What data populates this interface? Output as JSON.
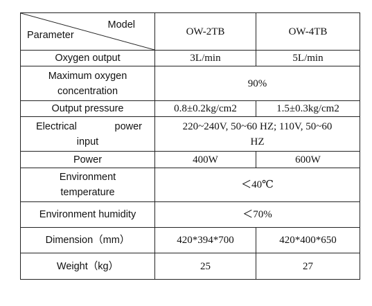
{
  "header": {
    "model_label": "Model",
    "parameter_label": "Parameter",
    "models": [
      "OW-2TB",
      "OW-4TB"
    ]
  },
  "rows": {
    "oxygen_output": {
      "label": "Oxygen output",
      "ow2tb": "3L/min",
      "ow4tb": "5L/min"
    },
    "max_oxygen_concentration": {
      "label_line1": "Maximum oxygen",
      "label_line2": "concentration",
      "value": "90%"
    },
    "output_pressure": {
      "label": "Output pressure",
      "ow2tb": "0.8±0.2kg/cm2",
      "ow4tb": "1.5±0.3kg/cm2"
    },
    "electrical_power_input": {
      "label_word1": "Electrical",
      "label_word2": "power",
      "label_line2": "input",
      "value_line1": "220~240V, 50~60 HZ; 110V, 50~60",
      "value_line2": "HZ"
    },
    "power": {
      "label": "Power",
      "ow2tb": "400W",
      "ow4tb": "600W"
    },
    "environment_temperature": {
      "label_line1": "Environment",
      "label_line2": "temperature",
      "value": "＜40℃"
    },
    "environment_humidity": {
      "label": "Environment humidity",
      "value": "＜70%"
    },
    "dimension": {
      "label": "Dimension（mm）",
      "ow2tb": "420*394*700",
      "ow4tb": "420*400*650"
    },
    "weight": {
      "label": "Weight（kg）",
      "ow2tb": "25",
      "ow4tb": "27"
    }
  }
}
